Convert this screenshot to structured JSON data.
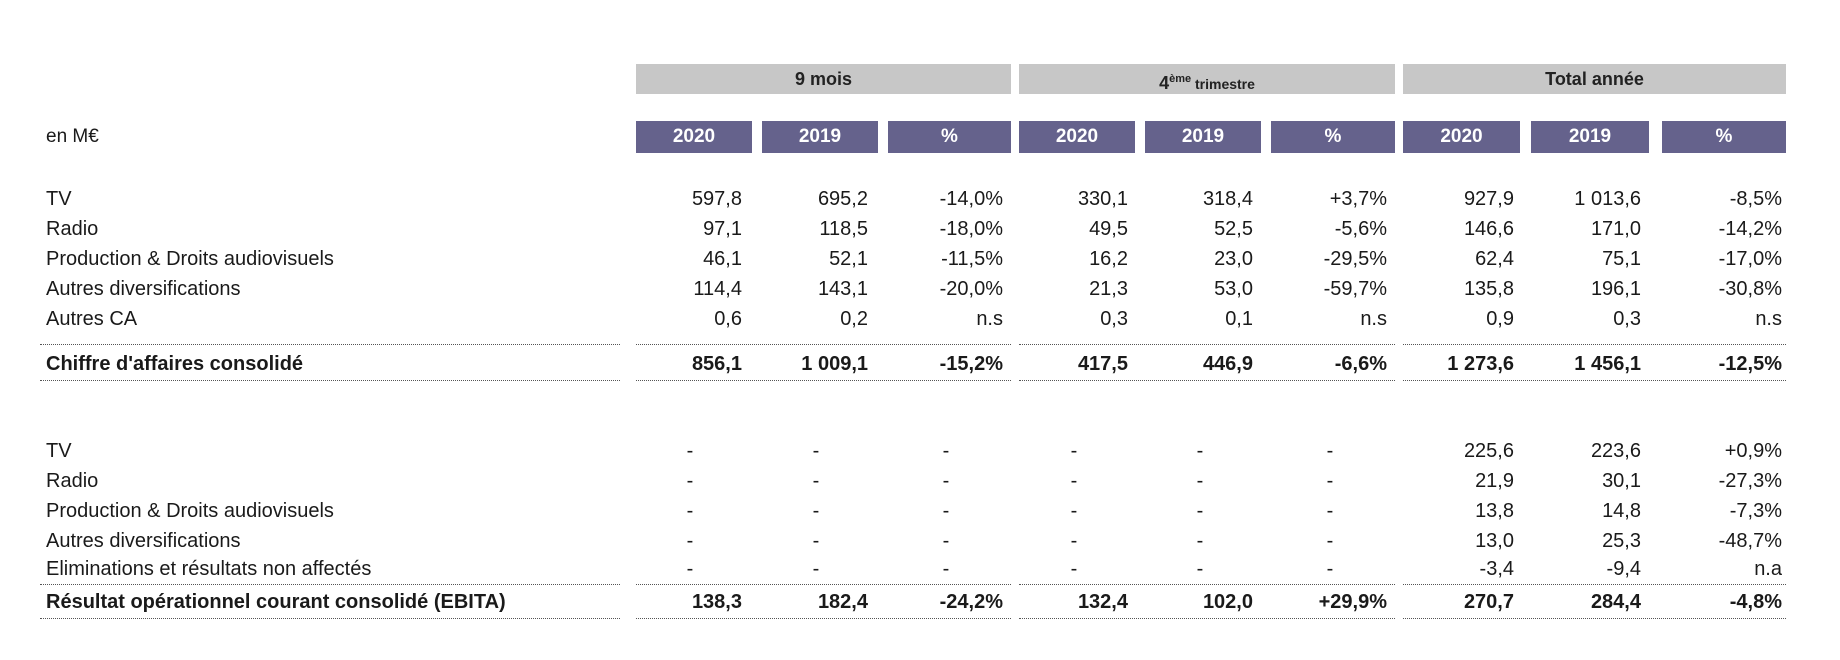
{
  "header": {
    "unit_label": "en M€",
    "groups": [
      {
        "label": "9 mois"
      },
      {
        "label": "4",
        "sup": "ème",
        "suffix": " trimestre"
      },
      {
        "label": "Total année"
      }
    ],
    "columns": [
      "2020",
      "2019",
      "%",
      "2020",
      "2019",
      "%",
      "2020",
      "2019",
      "%"
    ]
  },
  "section1": {
    "rows": [
      {
        "label": "TV",
        "values": [
          "597,8",
          "695,2",
          "-14,0%",
          "330,1",
          "318,4",
          "+3,7%",
          "927,9",
          "1 013,6",
          "-8,5%"
        ]
      },
      {
        "label": "Radio",
        "values": [
          "97,1",
          "118,5",
          "-18,0%",
          "49,5",
          "52,5",
          "-5,6%",
          "146,6",
          "171,0",
          "-14,2%"
        ]
      },
      {
        "label": "Production & Droits audiovisuels",
        "values": [
          "46,1",
          "52,1",
          "-11,5%",
          "16,2",
          "23,0",
          "-29,5%",
          "62,4",
          "75,1",
          "-17,0%"
        ]
      },
      {
        "label": "Autres diversifications",
        "values": [
          "114,4",
          "143,1",
          "-20,0%",
          "21,3",
          "53,0",
          "-59,7%",
          "135,8",
          "196,1",
          "-30,8%"
        ]
      },
      {
        "label": "Autres CA",
        "values": [
          "0,6",
          "0,2",
          "n.s",
          "0,3",
          "0,1",
          "n.s",
          "0,9",
          "0,3",
          "n.s"
        ]
      }
    ],
    "total": {
      "label": "Chiffre d'affaires consolidé",
      "values": [
        "856,1",
        "1 009,1",
        "-15,2%",
        "417,5",
        "446,9",
        "-6,6%",
        "1 273,6",
        "1 456,1",
        "-12,5%"
      ]
    }
  },
  "section2": {
    "rows": [
      {
        "label": "TV",
        "values": [
          "-",
          "-",
          "-",
          "-",
          "-",
          "-",
          "225,6",
          "223,6",
          "+0,9%"
        ]
      },
      {
        "label": "Radio",
        "values": [
          "-",
          "-",
          "-",
          "-",
          "-",
          "-",
          "21,9",
          "30,1",
          "-27,3%"
        ]
      },
      {
        "label": "Production & Droits audiovisuels",
        "values": [
          "-",
          "-",
          "-",
          "-",
          "-",
          "-",
          "13,8",
          "14,8",
          "-7,3%"
        ]
      },
      {
        "label": "Autres diversifications",
        "values": [
          "-",
          "-",
          "-",
          "-",
          "-",
          "-",
          "13,0",
          "25,3",
          "-48,7%"
        ]
      },
      {
        "label": "Eliminations et résultats non affectés",
        "values": [
          "-",
          "-",
          "-",
          "-",
          "-",
          "-",
          "-3,4",
          "-9,4",
          "n.a"
        ]
      }
    ],
    "total": {
      "label": "Résultat opérationnel courant consolidé (EBITA)",
      "values": [
        "138,3",
        "182,4",
        "-24,2%",
        "132,4",
        "102,0",
        "+29,9%",
        "270,7",
        "284,4",
        "-4,8%"
      ]
    }
  }
}
